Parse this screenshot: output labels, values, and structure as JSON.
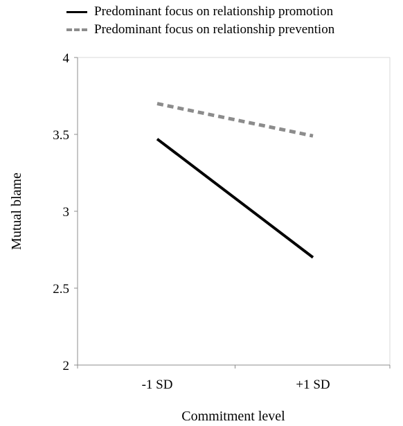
{
  "chart_data": {
    "type": "line",
    "title": "",
    "xlabel": "Commitment level",
    "ylabel": "Mutual blame",
    "categories": [
      "-1 SD",
      "+1 SD"
    ],
    "ylim": [
      2,
      4
    ],
    "yticks": [
      "2",
      "2.5",
      "3",
      "3.5",
      "4"
    ],
    "grid": false,
    "legend_position": "top",
    "series": [
      {
        "name": "Predominant focus on relationship promotion",
        "values": [
          3.47,
          2.7
        ],
        "color": "#000000",
        "style": "solid"
      },
      {
        "name": "Predominant focus on relationship prevention",
        "values": [
          3.7,
          3.49
        ],
        "color": "#8c8c8c",
        "style": "dashed"
      }
    ]
  }
}
